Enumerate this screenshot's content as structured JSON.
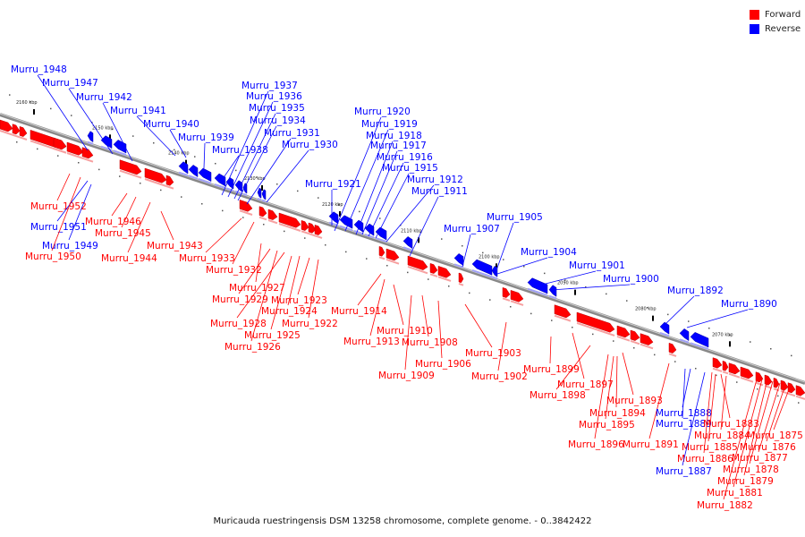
{
  "legend": {
    "forward": {
      "label": "Forward",
      "color": "#ff0000"
    },
    "reverse": {
      "label": "Reverse",
      "color": "#0000ff"
    }
  },
  "caption": "Muricauda ruestringensis DSM 13258 chromosome, complete genome. - 0..3842422",
  "ticks": [
    "2160 kbp",
    "2150 kbp",
    "2140 kbp",
    "2130 kbp",
    "2120 kbp",
    "2110 kbp",
    "2100 kbp",
    "2090 kbp",
    "2080 kbp",
    "2070 kbp"
  ],
  "genes": [
    {
      "label": "Murru_1948",
      "strand": "reverse"
    },
    {
      "label": "Murru_1947",
      "strand": "reverse"
    },
    {
      "label": "Murru_1942",
      "strand": "reverse"
    },
    {
      "label": "Murru_1941",
      "strand": "reverse"
    },
    {
      "label": "Murru_1940",
      "strand": "reverse"
    },
    {
      "label": "Murru_1939",
      "strand": "reverse"
    },
    {
      "label": "Murru_1938",
      "strand": "reverse"
    },
    {
      "label": "Murru_1937",
      "strand": "reverse"
    },
    {
      "label": "Murru_1936",
      "strand": "reverse"
    },
    {
      "label": "Murru_1935",
      "strand": "reverse"
    },
    {
      "label": "Murru_1934",
      "strand": "reverse"
    },
    {
      "label": "Murru_1931",
      "strand": "reverse"
    },
    {
      "label": "Murru_1930",
      "strand": "reverse"
    },
    {
      "label": "Murru_1920",
      "strand": "reverse"
    },
    {
      "label": "Murru_1919",
      "strand": "reverse"
    },
    {
      "label": "Murru_1918",
      "strand": "reverse"
    },
    {
      "label": "Murru_1917",
      "strand": "reverse"
    },
    {
      "label": "Murru_1916",
      "strand": "reverse"
    },
    {
      "label": "Murru_1915",
      "strand": "reverse"
    },
    {
      "label": "Murru_1912",
      "strand": "reverse"
    },
    {
      "label": "Murru_1911",
      "strand": "reverse"
    },
    {
      "label": "Murru_1921",
      "strand": "reverse"
    },
    {
      "label": "Murru_1905",
      "strand": "reverse"
    },
    {
      "label": "Murru_1907",
      "strand": "reverse"
    },
    {
      "label": "Murru_1904",
      "strand": "reverse"
    },
    {
      "label": "Murru_1901",
      "strand": "reverse"
    },
    {
      "label": "Murru_1900",
      "strand": "reverse"
    },
    {
      "label": "Murru_1892",
      "strand": "reverse"
    },
    {
      "label": "Murru_1890",
      "strand": "reverse"
    },
    {
      "label": "Murru_1952",
      "strand": "forward"
    },
    {
      "label": "Murru_1951",
      "strand": "reverse"
    },
    {
      "label": "Murru_1949",
      "strand": "reverse"
    },
    {
      "label": "Murru_1950",
      "strand": "forward"
    },
    {
      "label": "Murru_1946",
      "strand": "forward"
    },
    {
      "label": "Murru_1945",
      "strand": "forward"
    },
    {
      "label": "Murru_1944",
      "strand": "forward"
    },
    {
      "label": "Murru_1943",
      "strand": "forward"
    },
    {
      "label": "Murru_1933",
      "strand": "forward"
    },
    {
      "label": "Murru_1932",
      "strand": "forward"
    },
    {
      "label": "Murru_1927",
      "strand": "forward"
    },
    {
      "label": "Murru_1929",
      "strand": "forward"
    },
    {
      "label": "Murru_1924",
      "strand": "forward"
    },
    {
      "label": "Murru_1923",
      "strand": "forward"
    },
    {
      "label": "Murru_1928",
      "strand": "forward"
    },
    {
      "label": "Murru_1922",
      "strand": "forward"
    },
    {
      "label": "Murru_1925",
      "strand": "forward"
    },
    {
      "label": "Murru_1926",
      "strand": "forward"
    },
    {
      "label": "Murru_1914",
      "strand": "forward"
    },
    {
      "label": "Murru_1910",
      "strand": "forward"
    },
    {
      "label": "Murru_1913",
      "strand": "forward"
    },
    {
      "label": "Murru_1908",
      "strand": "forward"
    },
    {
      "label": "Murru_1906",
      "strand": "forward"
    },
    {
      "label": "Murru_1909",
      "strand": "forward"
    },
    {
      "label": "Murru_1903",
      "strand": "forward"
    },
    {
      "label": "Murru_1902",
      "strand": "forward"
    },
    {
      "label": "Murru_1899",
      "strand": "forward"
    },
    {
      "label": "Murru_1897",
      "strand": "forward"
    },
    {
      "label": "Murru_1898",
      "strand": "forward"
    },
    {
      "label": "Murru_1893",
      "strand": "forward"
    },
    {
      "label": "Murru_1894",
      "strand": "forward"
    },
    {
      "label": "Murru_1895",
      "strand": "forward"
    },
    {
      "label": "Murru_1896",
      "strand": "forward"
    },
    {
      "label": "Murru_1891",
      "strand": "forward"
    },
    {
      "label": "Murru_1888",
      "strand": "reverse"
    },
    {
      "label": "Murru_1889",
      "strand": "reverse"
    },
    {
      "label": "Murru_1883",
      "strand": "forward"
    },
    {
      "label": "Murru_1884",
      "strand": "forward"
    },
    {
      "label": "Murru_1885",
      "strand": "forward"
    },
    {
      "label": "Murru_1886",
      "strand": "forward"
    },
    {
      "label": "Murru_1887",
      "strand": "reverse"
    },
    {
      "label": "Murru_1875",
      "strand": "forward"
    },
    {
      "label": "Murru_1876",
      "strand": "forward"
    },
    {
      "label": "Murru_1877",
      "strand": "forward"
    },
    {
      "label": "Murru_1878",
      "strand": "forward"
    },
    {
      "label": "Murru_1879",
      "strand": "forward"
    },
    {
      "label": "Murru_1881",
      "strand": "forward"
    },
    {
      "label": "Murru_1882",
      "strand": "forward"
    }
  ]
}
